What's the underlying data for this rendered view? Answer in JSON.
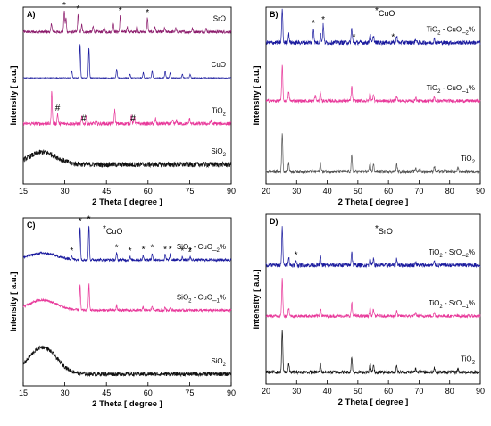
{
  "chart_data": [
    {
      "type": "line",
      "panel": "A)",
      "xlabel": "2 Theta [ degree ]",
      "ylabel": "Intensity [ a.u.]",
      "xlim": [
        15,
        90
      ],
      "xticks": [
        15,
        30,
        45,
        60,
        75,
        90
      ],
      "legend_marker": "",
      "series": [
        {
          "name": "SrO",
          "color": "#8b1a6b",
          "baseline": 0.86,
          "noise": 0.008,
          "hump": null,
          "peaks": [
            [
              25.2,
              0.05
            ],
            [
              29.8,
              0.12
            ],
            [
              30.4,
              0.08
            ],
            [
              34.8,
              0.1
            ],
            [
              36.1,
              0.04
            ],
            [
              40.2,
              0.03
            ],
            [
              44.2,
              0.03
            ],
            [
              47.5,
              0.05
            ],
            [
              50.0,
              0.09
            ],
            [
              52.5,
              0.03
            ],
            [
              56.0,
              0.04
            ],
            [
              59.8,
              0.08
            ],
            [
              62.5,
              0.03
            ],
            [
              66.0,
              0.02
            ],
            [
              70.0,
              0.02
            ],
            [
              76.0,
              0.02
            ],
            [
              81.0,
              0.02
            ]
          ]
        },
        {
          "name": "CuO",
          "color": "#1a1a9e",
          "baseline": 0.6,
          "noise": 0.002,
          "hump": null,
          "peaks": [
            [
              32.5,
              0.04
            ],
            [
              35.5,
              0.19
            ],
            [
              38.7,
              0.17
            ],
            [
              48.7,
              0.05
            ],
            [
              53.5,
              0.02
            ],
            [
              58.3,
              0.03
            ],
            [
              61.5,
              0.04
            ],
            [
              66.2,
              0.04
            ],
            [
              68.0,
              0.03
            ],
            [
              72.4,
              0.02
            ],
            [
              75.2,
              0.02
            ]
          ]
        },
        {
          "name": "TiO2",
          "color": "#e8389a",
          "baseline": 0.34,
          "noise": 0.01,
          "hump": null,
          "peaks": [
            [
              25.3,
              0.19
            ],
            [
              27.4,
              0.06
            ],
            [
              36.1,
              0.04
            ],
            [
              37.8,
              0.05
            ],
            [
              41.2,
              0.02
            ],
            [
              48.0,
              0.08
            ],
            [
              54.0,
              0.05
            ],
            [
              55.1,
              0.04
            ],
            [
              62.7,
              0.03
            ],
            [
              68.9,
              0.02
            ],
            [
              70.3,
              0.02
            ],
            [
              75.0,
              0.03
            ],
            [
              82.7,
              0.02
            ]
          ]
        },
        {
          "name": "SiO2",
          "color": "#111111",
          "baseline": 0.11,
          "noise": 0.015,
          "hump": [
            22,
            0.07,
            5
          ],
          "peaks": []
        }
      ],
      "markers": [
        {
          "x": 29.8,
          "series": "SrO",
          "symbol": "*"
        },
        {
          "x": 34.8,
          "series": "SrO",
          "symbol": "*"
        },
        {
          "x": 50.0,
          "series": "SrO",
          "symbol": "*"
        },
        {
          "x": 59.8,
          "series": "SrO",
          "symbol": "*"
        },
        {
          "x": 27.4,
          "series": "TiO2",
          "symbol": "#"
        },
        {
          "x": 36.8,
          "series": "TiO2",
          "symbol": "#"
        },
        {
          "x": 54.6,
          "series": "TiO2",
          "symbol": "#"
        }
      ]
    },
    {
      "type": "line",
      "panel": "B)",
      "xlabel": "2 Theta [ degree ]",
      "ylabel": "Intensity [ a.u.]",
      "xlim": [
        20,
        90
      ],
      "xticks": [
        20,
        30,
        40,
        50,
        60,
        70,
        80,
        90
      ],
      "legend_marker": "CuO",
      "series": [
        {
          "name": "TiO2 - CuO_2%",
          "color": "#1a1a9e",
          "baseline": 0.8,
          "noise": 0.012,
          "hump": null,
          "peaks": [
            [
              25.3,
              0.19
            ],
            [
              27.4,
              0.05
            ],
            [
              35.5,
              0.08
            ],
            [
              37.8,
              0.05
            ],
            [
              38.7,
              0.1
            ],
            [
              48.0,
              0.08
            ],
            [
              54.0,
              0.05
            ],
            [
              55.1,
              0.04
            ],
            [
              62.7,
              0.04
            ],
            [
              68.9,
              0.02
            ],
            [
              75.0,
              0.02
            ]
          ]
        },
        {
          "name": "TiO2 - CuO_1%",
          "color": "#e8389a",
          "baseline": 0.47,
          "noise": 0.009,
          "hump": null,
          "peaks": [
            [
              25.3,
              0.2
            ],
            [
              27.4,
              0.05
            ],
            [
              36.1,
              0.03
            ],
            [
              37.8,
              0.05
            ],
            [
              48.0,
              0.08
            ],
            [
              54.0,
              0.05
            ],
            [
              55.1,
              0.04
            ],
            [
              62.7,
              0.03
            ],
            [
              68.9,
              0.02
            ],
            [
              75.0,
              0.02
            ]
          ]
        },
        {
          "name": "TiO2",
          "color": "#555555",
          "baseline": 0.07,
          "noise": 0.01,
          "hump": null,
          "peaks": [
            [
              25.3,
              0.22
            ],
            [
              27.4,
              0.05
            ],
            [
              37.8,
              0.05
            ],
            [
              48.0,
              0.09
            ],
            [
              54.0,
              0.05
            ],
            [
              55.1,
              0.04
            ],
            [
              62.7,
              0.04
            ],
            [
              68.9,
              0.02
            ],
            [
              70.3,
              0.02
            ],
            [
              75.0,
              0.03
            ],
            [
              82.7,
              0.02
            ]
          ]
        }
      ],
      "markers": [
        {
          "x": 35.5,
          "series": "TiO2 - CuO_2%",
          "symbol": "*"
        },
        {
          "x": 38.7,
          "series": "TiO2 - CuO_2%",
          "symbol": "*"
        },
        {
          "x": 48.7,
          "series": "TiO2 - CuO_2%",
          "symbol": "*"
        },
        {
          "x": 61.5,
          "series": "TiO2 - CuO_2%",
          "symbol": "*"
        }
      ]
    },
    {
      "type": "line",
      "panel": "C)",
      "xlabel": "2 Theta [ degree ]",
      "ylabel": "Intensity [ a.u.]",
      "xlim": [
        15,
        90
      ],
      "xticks": [
        15,
        30,
        45,
        60,
        75,
        90
      ],
      "legend_marker": "CuO",
      "series": [
        {
          "name": "SiO2 - CuO_2%",
          "color": "#1a1a9e",
          "baseline": 0.75,
          "noise": 0.008,
          "hump": [
            22,
            0.04,
            5
          ],
          "peaks": [
            [
              32.5,
              0.02
            ],
            [
              35.5,
              0.2
            ],
            [
              38.7,
              0.21
            ],
            [
              48.7,
              0.04
            ],
            [
              53.5,
              0.02
            ],
            [
              58.3,
              0.03
            ],
            [
              61.5,
              0.04
            ],
            [
              66.2,
              0.03
            ],
            [
              68.0,
              0.03
            ],
            [
              72.4,
              0.02
            ],
            [
              75.2,
              0.02
            ]
          ]
        },
        {
          "name": "SiO2 - CuO_1%",
          "color": "#e8389a",
          "baseline": 0.45,
          "noise": 0.008,
          "hump": [
            22,
            0.06,
            5
          ],
          "peaks": [
            [
              35.5,
              0.15
            ],
            [
              38.7,
              0.16
            ],
            [
              48.7,
              0.03
            ],
            [
              58.3,
              0.02
            ],
            [
              61.5,
              0.03
            ],
            [
              66.2,
              0.02
            ],
            [
              68.0,
              0.02
            ]
          ]
        },
        {
          "name": "SiO2",
          "color": "#111111",
          "baseline": 0.07,
          "noise": 0.012,
          "hump": [
            22,
            0.16,
            5
          ],
          "peaks": []
        }
      ],
      "markers": [
        {
          "x": 32.5,
          "series": "SiO2 - CuO_2%",
          "symbol": "*"
        },
        {
          "x": 35.5,
          "series": "SiO2 - CuO_2%",
          "symbol": "*"
        },
        {
          "x": 38.7,
          "series": "SiO2 - CuO_2%",
          "symbol": "*"
        },
        {
          "x": 48.7,
          "series": "SiO2 - CuO_2%",
          "symbol": "*"
        },
        {
          "x": 53.5,
          "series": "SiO2 - CuO_2%",
          "symbol": "*"
        },
        {
          "x": 58.3,
          "series": "SiO2 - CuO_2%",
          "symbol": "*"
        },
        {
          "x": 61.5,
          "series": "SiO2 - CuO_2%",
          "symbol": "*"
        },
        {
          "x": 66.2,
          "series": "SiO2 - CuO_2%",
          "symbol": "*"
        },
        {
          "x": 68.0,
          "series": "SiO2 - CuO_2%",
          "symbol": "*"
        },
        {
          "x": 72.4,
          "series": "SiO2 - CuO_2%",
          "symbol": "*"
        },
        {
          "x": 75.2,
          "series": "SiO2 - CuO_2%",
          "symbol": "*"
        }
      ]
    },
    {
      "type": "line",
      "panel": "D)",
      "xlabel": "2 Theta [ degree ]",
      "ylabel": "Intensity [ a.u.]",
      "xlim": [
        20,
        90
      ],
      "xticks": [
        20,
        30,
        40,
        50,
        60,
        70,
        80,
        90
      ],
      "legend_marker": "SrO",
      "series": [
        {
          "name": "TiO2 - SrO_2%",
          "color": "#1a1a9e",
          "baseline": 0.7,
          "noise": 0.012,
          "hump": null,
          "peaks": [
            [
              25.3,
              0.22
            ],
            [
              27.4,
              0.05
            ],
            [
              29.8,
              0.03
            ],
            [
              37.8,
              0.05
            ],
            [
              48.0,
              0.08
            ],
            [
              54.0,
              0.05
            ],
            [
              55.1,
              0.04
            ],
            [
              62.7,
              0.04
            ],
            [
              68.9,
              0.02
            ],
            [
              75.0,
              0.02
            ]
          ]
        },
        {
          "name": "TiO2 - SrO_1%",
          "color": "#e8389a",
          "baseline": 0.4,
          "noise": 0.009,
          "hump": null,
          "peaks": [
            [
              25.3,
              0.22
            ],
            [
              27.4,
              0.05
            ],
            [
              37.8,
              0.05
            ],
            [
              48.0,
              0.08
            ],
            [
              54.0,
              0.05
            ],
            [
              55.1,
              0.04
            ],
            [
              62.7,
              0.03
            ],
            [
              68.9,
              0.02
            ],
            [
              75.0,
              0.02
            ]
          ]
        },
        {
          "name": "TiO2",
          "color": "#111111",
          "baseline": 0.07,
          "noise": 0.01,
          "hump": null,
          "peaks": [
            [
              25.3,
              0.25
            ],
            [
              27.4,
              0.05
            ],
            [
              37.8,
              0.05
            ],
            [
              48.0,
              0.09
            ],
            [
              54.0,
              0.05
            ],
            [
              55.1,
              0.04
            ],
            [
              62.7,
              0.04
            ],
            [
              68.9,
              0.02
            ],
            [
              70.3,
              0.02
            ],
            [
              75.0,
              0.03
            ],
            [
              82.7,
              0.02
            ]
          ]
        }
      ],
      "markers": [
        {
          "x": 29.8,
          "series": "TiO2 - SrO_2%",
          "symbol": "*"
        }
      ]
    }
  ]
}
